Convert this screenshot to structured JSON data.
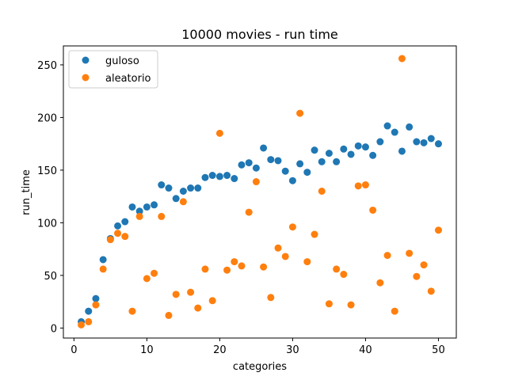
{
  "chart_data": {
    "type": "scatter",
    "title": "10000 movies - run time",
    "xlabel": "categories",
    "ylabel": "run_time",
    "xlim": [
      -1.45,
      52.45
    ],
    "ylim": [
      -9.5,
      268
    ],
    "xticks": [
      0,
      10,
      20,
      30,
      40,
      50
    ],
    "yticks": [
      0,
      50,
      100,
      150,
      200,
      250
    ],
    "grid": false,
    "legend_position": "top-left",
    "series": [
      {
        "name": "guloso",
        "color": "#1f77b4",
        "x": [
          1,
          2,
          3,
          4,
          5,
          6,
          7,
          8,
          9,
          10,
          11,
          12,
          13,
          14,
          15,
          16,
          17,
          18,
          19,
          20,
          21,
          22,
          23,
          24,
          25,
          26,
          27,
          28,
          29,
          30,
          31,
          32,
          33,
          34,
          35,
          36,
          37,
          38,
          39,
          40,
          41,
          42,
          43,
          44,
          45,
          46,
          47,
          48,
          49,
          50
        ],
        "y": [
          6,
          16,
          28,
          65,
          85,
          97,
          101,
          115,
          111,
          115,
          117,
          136,
          133,
          123,
          130,
          133,
          133,
          143,
          145,
          144,
          145,
          142,
          155,
          157,
          152,
          171,
          160,
          159,
          149,
          140,
          156,
          148,
          169,
          158,
          166,
          158,
          170,
          165,
          173,
          172,
          164,
          177,
          192,
          186,
          168,
          191,
          177,
          176,
          180,
          175
        ]
      },
      {
        "name": "aleatorio",
        "color": "#ff7f0e",
        "x": [
          1,
          2,
          3,
          4,
          5,
          6,
          7,
          8,
          9,
          10,
          11,
          12,
          13,
          14,
          15,
          16,
          17,
          18,
          19,
          20,
          21,
          22,
          23,
          24,
          25,
          26,
          27,
          28,
          29,
          30,
          31,
          32,
          33,
          34,
          35,
          36,
          37,
          38,
          39,
          40,
          41,
          42,
          43,
          44,
          45,
          46,
          47,
          48,
          49,
          50
        ],
        "y": [
          3,
          6,
          22,
          56,
          84,
          90,
          87,
          16,
          106,
          47,
          52,
          106,
          12,
          32,
          120,
          34,
          19,
          56,
          26,
          185,
          55,
          63,
          59,
          110,
          139,
          58,
          29,
          76,
          68,
          96,
          204,
          63,
          89,
          130,
          23,
          56,
          51,
          22,
          135,
          136,
          112,
          43,
          69,
          16,
          256,
          71,
          49,
          60,
          35,
          93
        ]
      }
    ]
  }
}
